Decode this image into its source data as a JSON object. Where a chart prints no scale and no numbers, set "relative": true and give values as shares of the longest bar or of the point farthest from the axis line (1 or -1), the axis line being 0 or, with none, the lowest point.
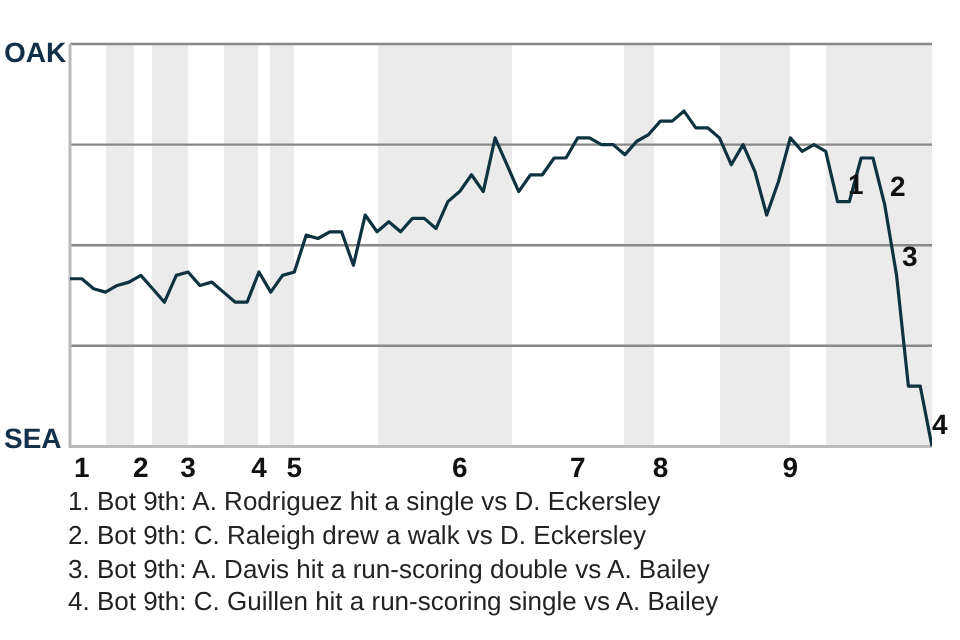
{
  "chart_data": {
    "type": "line",
    "relative": true,
    "categories": [
      null,
      "1",
      null,
      null,
      null,
      null,
      "2",
      null,
      null,
      null,
      "3",
      null,
      null,
      null,
      null,
      null,
      "4",
      null,
      null,
      "5",
      null,
      null,
      null,
      null,
      null,
      null,
      null,
      null,
      null,
      null,
      null,
      null,
      null,
      "6",
      null,
      null,
      null,
      null,
      null,
      null,
      null,
      null,
      null,
      "7",
      null,
      null,
      null,
      null,
      null,
      null,
      "8",
      null,
      null,
      null,
      null,
      null,
      null,
      null,
      null,
      null,
      null,
      "9",
      null,
      null,
      null,
      null,
      null,
      null,
      null,
      null,
      null,
      null,
      null,
      null
    ],
    "series": [
      {
        "color": "#0d3340",
        "values": [
          0.5,
          0.5,
          0.47,
          0.46,
          0.48,
          0.49,
          0.51,
          0.47,
          0.43,
          0.51,
          0.52,
          0.48,
          0.49,
          0.46,
          0.43,
          0.43,
          0.52,
          0.46,
          0.51,
          0.52,
          0.63,
          0.62,
          0.64,
          0.64,
          0.54,
          0.69,
          0.64,
          0.67,
          0.64,
          0.68,
          0.68,
          0.65,
          0.73,
          0.76,
          0.81,
          0.76,
          0.92,
          0.84,
          0.76,
          0.81,
          0.81,
          0.86,
          0.86,
          0.92,
          0.92,
          0.9,
          0.9,
          0.87,
          0.91,
          0.93,
          0.97,
          0.97,
          1,
          0.95,
          0.95,
          0.92,
          0.84,
          0.9,
          0.82,
          0.69,
          0.79,
          0.92,
          0.88,
          0.9,
          0.88,
          0.73,
          0.73,
          0.86,
          0.86,
          0.72,
          0.51,
          0.18,
          0.18,
          0
        ]
      }
    ],
    "grid": "y",
    "legend": false,
    "marker": "none",
    "line_style": "solid",
    "annotations": [
      "OAK",
      "SEA",
      "1",
      "2",
      "3",
      "4",
      "1. Bot 9th: A. Rodriguez hit a single vs D. Eckersley",
      "2. Bot 9th: C. Raleigh drew a walk vs D. Eckersley",
      "3. Bot 9th: A. Davis hit a run-scoring double vs A. Bailey",
      "4. Bot 9th: C. Guillen hit a run-scoring single vs A. Bailey"
    ]
  }
}
